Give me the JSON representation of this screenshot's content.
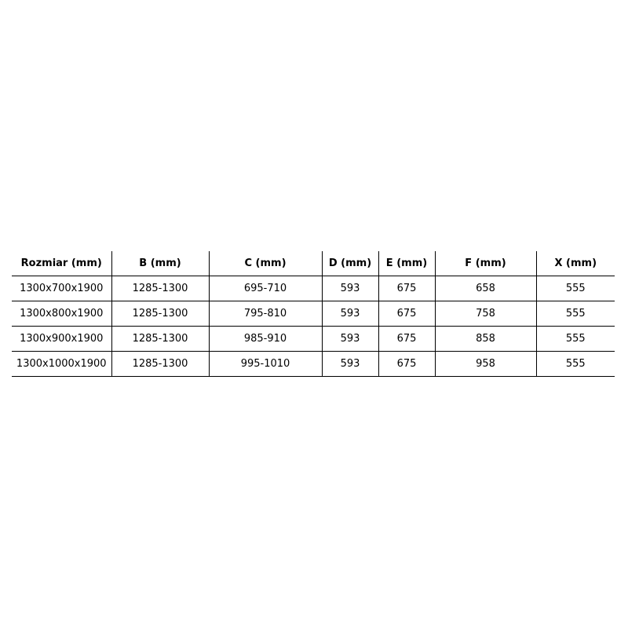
{
  "table": {
    "headers": [
      "Rozmiar (mm)",
      "B (mm)",
      "C (mm)",
      "D (mm)",
      "E (mm)",
      "F (mm)",
      "X (mm)"
    ],
    "rows": [
      [
        "1300x700x1900",
        "1285-1300",
        "695-710",
        "593",
        "675",
        "658",
        "555"
      ],
      [
        "1300x800x1900",
        "1285-1300",
        "795-810",
        "593",
        "675",
        "758",
        "555"
      ],
      [
        "1300x900x1900",
        "1285-1300",
        "985-910",
        "593",
        "675",
        "858",
        "555"
      ],
      [
        "1300x1000x1900",
        "1285-1300",
        "995-1010",
        "593",
        "675",
        "958",
        "555"
      ]
    ]
  }
}
